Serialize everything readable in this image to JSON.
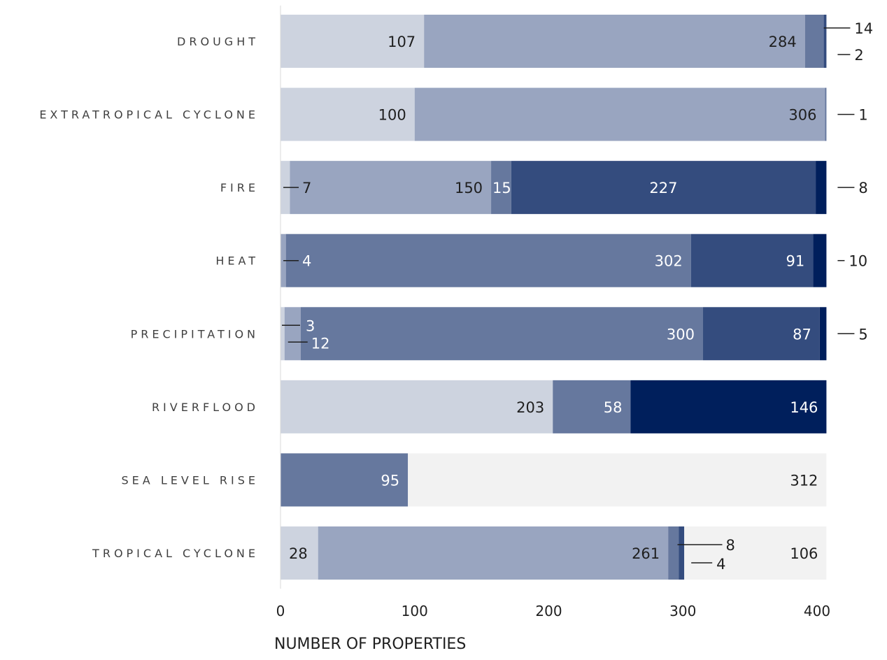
{
  "chart_data": {
    "type": "bar",
    "orientation": "horizontal",
    "stacked": true,
    "xlabel": "NUMBER OF PROPERTIES",
    "ylabel": "",
    "xlim": [
      0,
      407
    ],
    "xticks": [
      0,
      100,
      200,
      300,
      400
    ],
    "grid": false,
    "legend": "none",
    "categories": [
      "DROUGHT",
      "EXTRATROPICAL CYCLONE",
      "FIRE",
      "HEAT",
      "PRECIPITATION",
      "RIVERFLOOD",
      "SEA LEVEL RISE",
      "TROPICAL CYCLONE"
    ],
    "segment_colors": [
      "#cdd3df",
      "#99a5c0",
      "#66789e",
      "#344c7e",
      "#001f5c",
      "#f2f2f2"
    ],
    "bars": [
      {
        "category": "DROUGHT",
        "segments": [
          {
            "level": 0,
            "value": 107,
            "label": "107"
          },
          {
            "level": 1,
            "value": 284,
            "label": "284"
          },
          {
            "level": 2,
            "value": 14,
            "label": "14",
            "callout": "right-top"
          },
          {
            "level": 3,
            "value": 2,
            "label": "2",
            "callout": "right-bottom"
          }
        ]
      },
      {
        "category": "EXTRATROPICAL CYCLONE",
        "segments": [
          {
            "level": 0,
            "value": 100,
            "label": "100"
          },
          {
            "level": 1,
            "value": 306,
            "label": "306"
          },
          {
            "level": 2,
            "value": 1,
            "label": "1",
            "callout": "right-mid"
          }
        ]
      },
      {
        "category": "FIRE",
        "segments": [
          {
            "level": 0,
            "value": 7,
            "label": "7",
            "callout": "inside"
          },
          {
            "level": 1,
            "value": 150,
            "label": "150"
          },
          {
            "level": 2,
            "value": 15,
            "label": "15"
          },
          {
            "level": 3,
            "value": 227,
            "label": "227",
            "center": true
          },
          {
            "level": 4,
            "value": 8,
            "label": "8",
            "callout": "right-mid"
          }
        ]
      },
      {
        "category": "HEAT",
        "segments": [
          {
            "level": 1,
            "value": 4,
            "label": "4",
            "callout": "inside"
          },
          {
            "level": 2,
            "value": 302,
            "label": "302"
          },
          {
            "level": 3,
            "value": 91,
            "label": "91"
          },
          {
            "level": 4,
            "value": 10,
            "label": "10",
            "callout": "right-mid"
          }
        ]
      },
      {
        "category": "PRECIPITATION",
        "segments": [
          {
            "level": 0,
            "value": 3,
            "label": "3",
            "callout": "inside-top"
          },
          {
            "level": 1,
            "value": 12,
            "label": "12",
            "callout": "inside-bottom"
          },
          {
            "level": 2,
            "value": 300,
            "label": "300"
          },
          {
            "level": 3,
            "value": 87,
            "label": "87"
          },
          {
            "level": 4,
            "value": 5,
            "label": "5",
            "callout": "right-mid"
          }
        ]
      },
      {
        "category": "RIVERFLOOD",
        "segments": [
          {
            "level": 0,
            "value": 203,
            "label": "203"
          },
          {
            "level": 2,
            "value": 58,
            "label": "58"
          },
          {
            "level": 4,
            "value": 146,
            "label": "146"
          }
        ]
      },
      {
        "category": "SEA LEVEL RISE",
        "segments": [
          {
            "level": 2,
            "value": 95,
            "label": "95"
          },
          {
            "level": 5,
            "value": 312,
            "label": "312"
          }
        ]
      },
      {
        "category": "TROPICAL CYCLONE",
        "segments": [
          {
            "level": 0,
            "value": 28,
            "label": "28",
            "left": true
          },
          {
            "level": 1,
            "value": 261,
            "label": "261"
          },
          {
            "level": 2,
            "value": 8,
            "label": "8",
            "callout": "after-top"
          },
          {
            "level": 3,
            "value": 4,
            "label": "4",
            "callout": "after-bottom"
          },
          {
            "level": 5,
            "value": 106,
            "label": "106"
          }
        ]
      }
    ]
  }
}
